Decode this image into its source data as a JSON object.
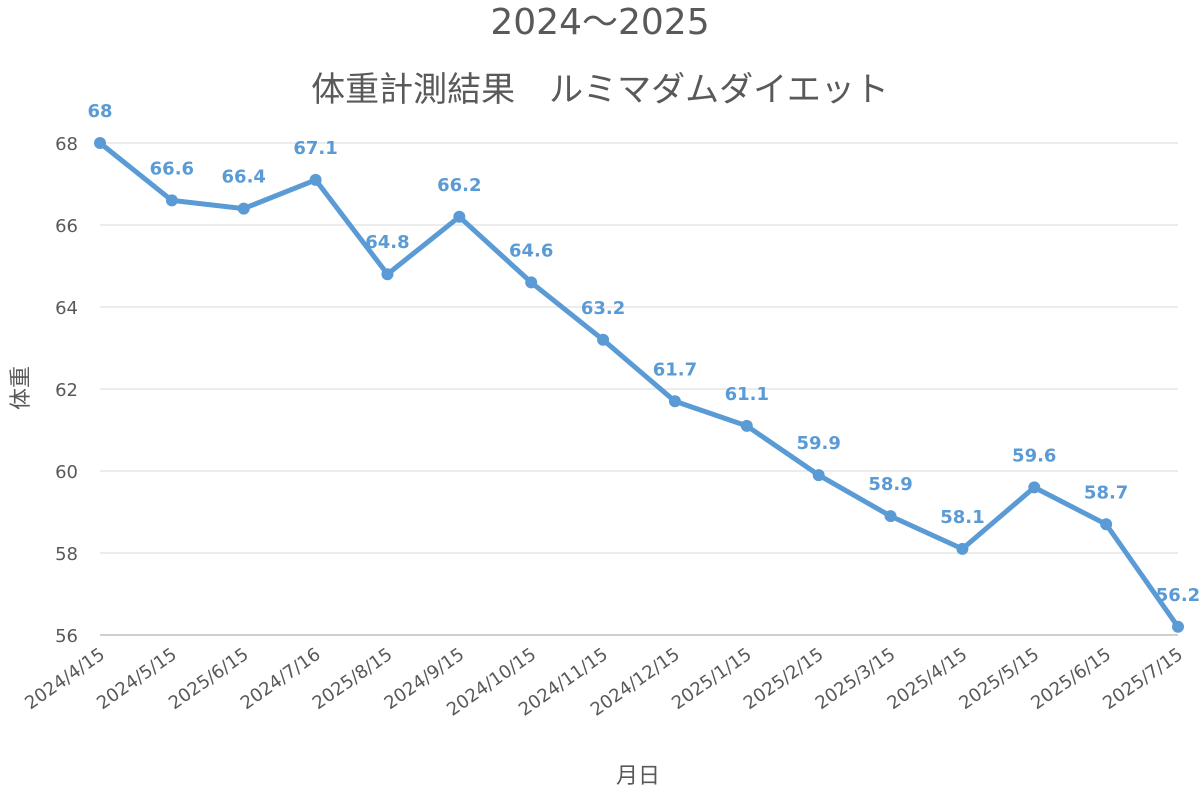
{
  "colors": {
    "series": "#5b9bd5",
    "text": "#595959",
    "grid": "#d9d9d9",
    "axis": "#bfbfbf"
  },
  "chart_data": {
    "type": "line",
    "title": "2024〜2025",
    "subtitle": "体重計測結果　ルミマダムダイエット",
    "xlabel": "月日",
    "ylabel": "体重",
    "categories": [
      "2024/4/15",
      "2024/5/15",
      "2025/6/15",
      "2024/7/16",
      "2025/8/15",
      "2024/9/15",
      "2024/10/15",
      "2024/11/15",
      "2024/12/15",
      "2025/1/15",
      "2025/2/15",
      "2025/3/15",
      "2025/4/15",
      "2025/5/15",
      "2025/6/15",
      "2025/7/15"
    ],
    "series": [
      {
        "values": [
          68,
          66.6,
          66.4,
          67.1,
          64.8,
          66.2,
          64.6,
          63.2,
          61.7,
          61.1,
          59.9,
          58.9,
          58.1,
          59.6,
          58.7,
          56.2
        ]
      }
    ],
    "ylim": [
      56,
      68
    ],
    "yticks": [
      56,
      58,
      60,
      62,
      64,
      66,
      68
    ],
    "grid": true,
    "legend": "none"
  }
}
